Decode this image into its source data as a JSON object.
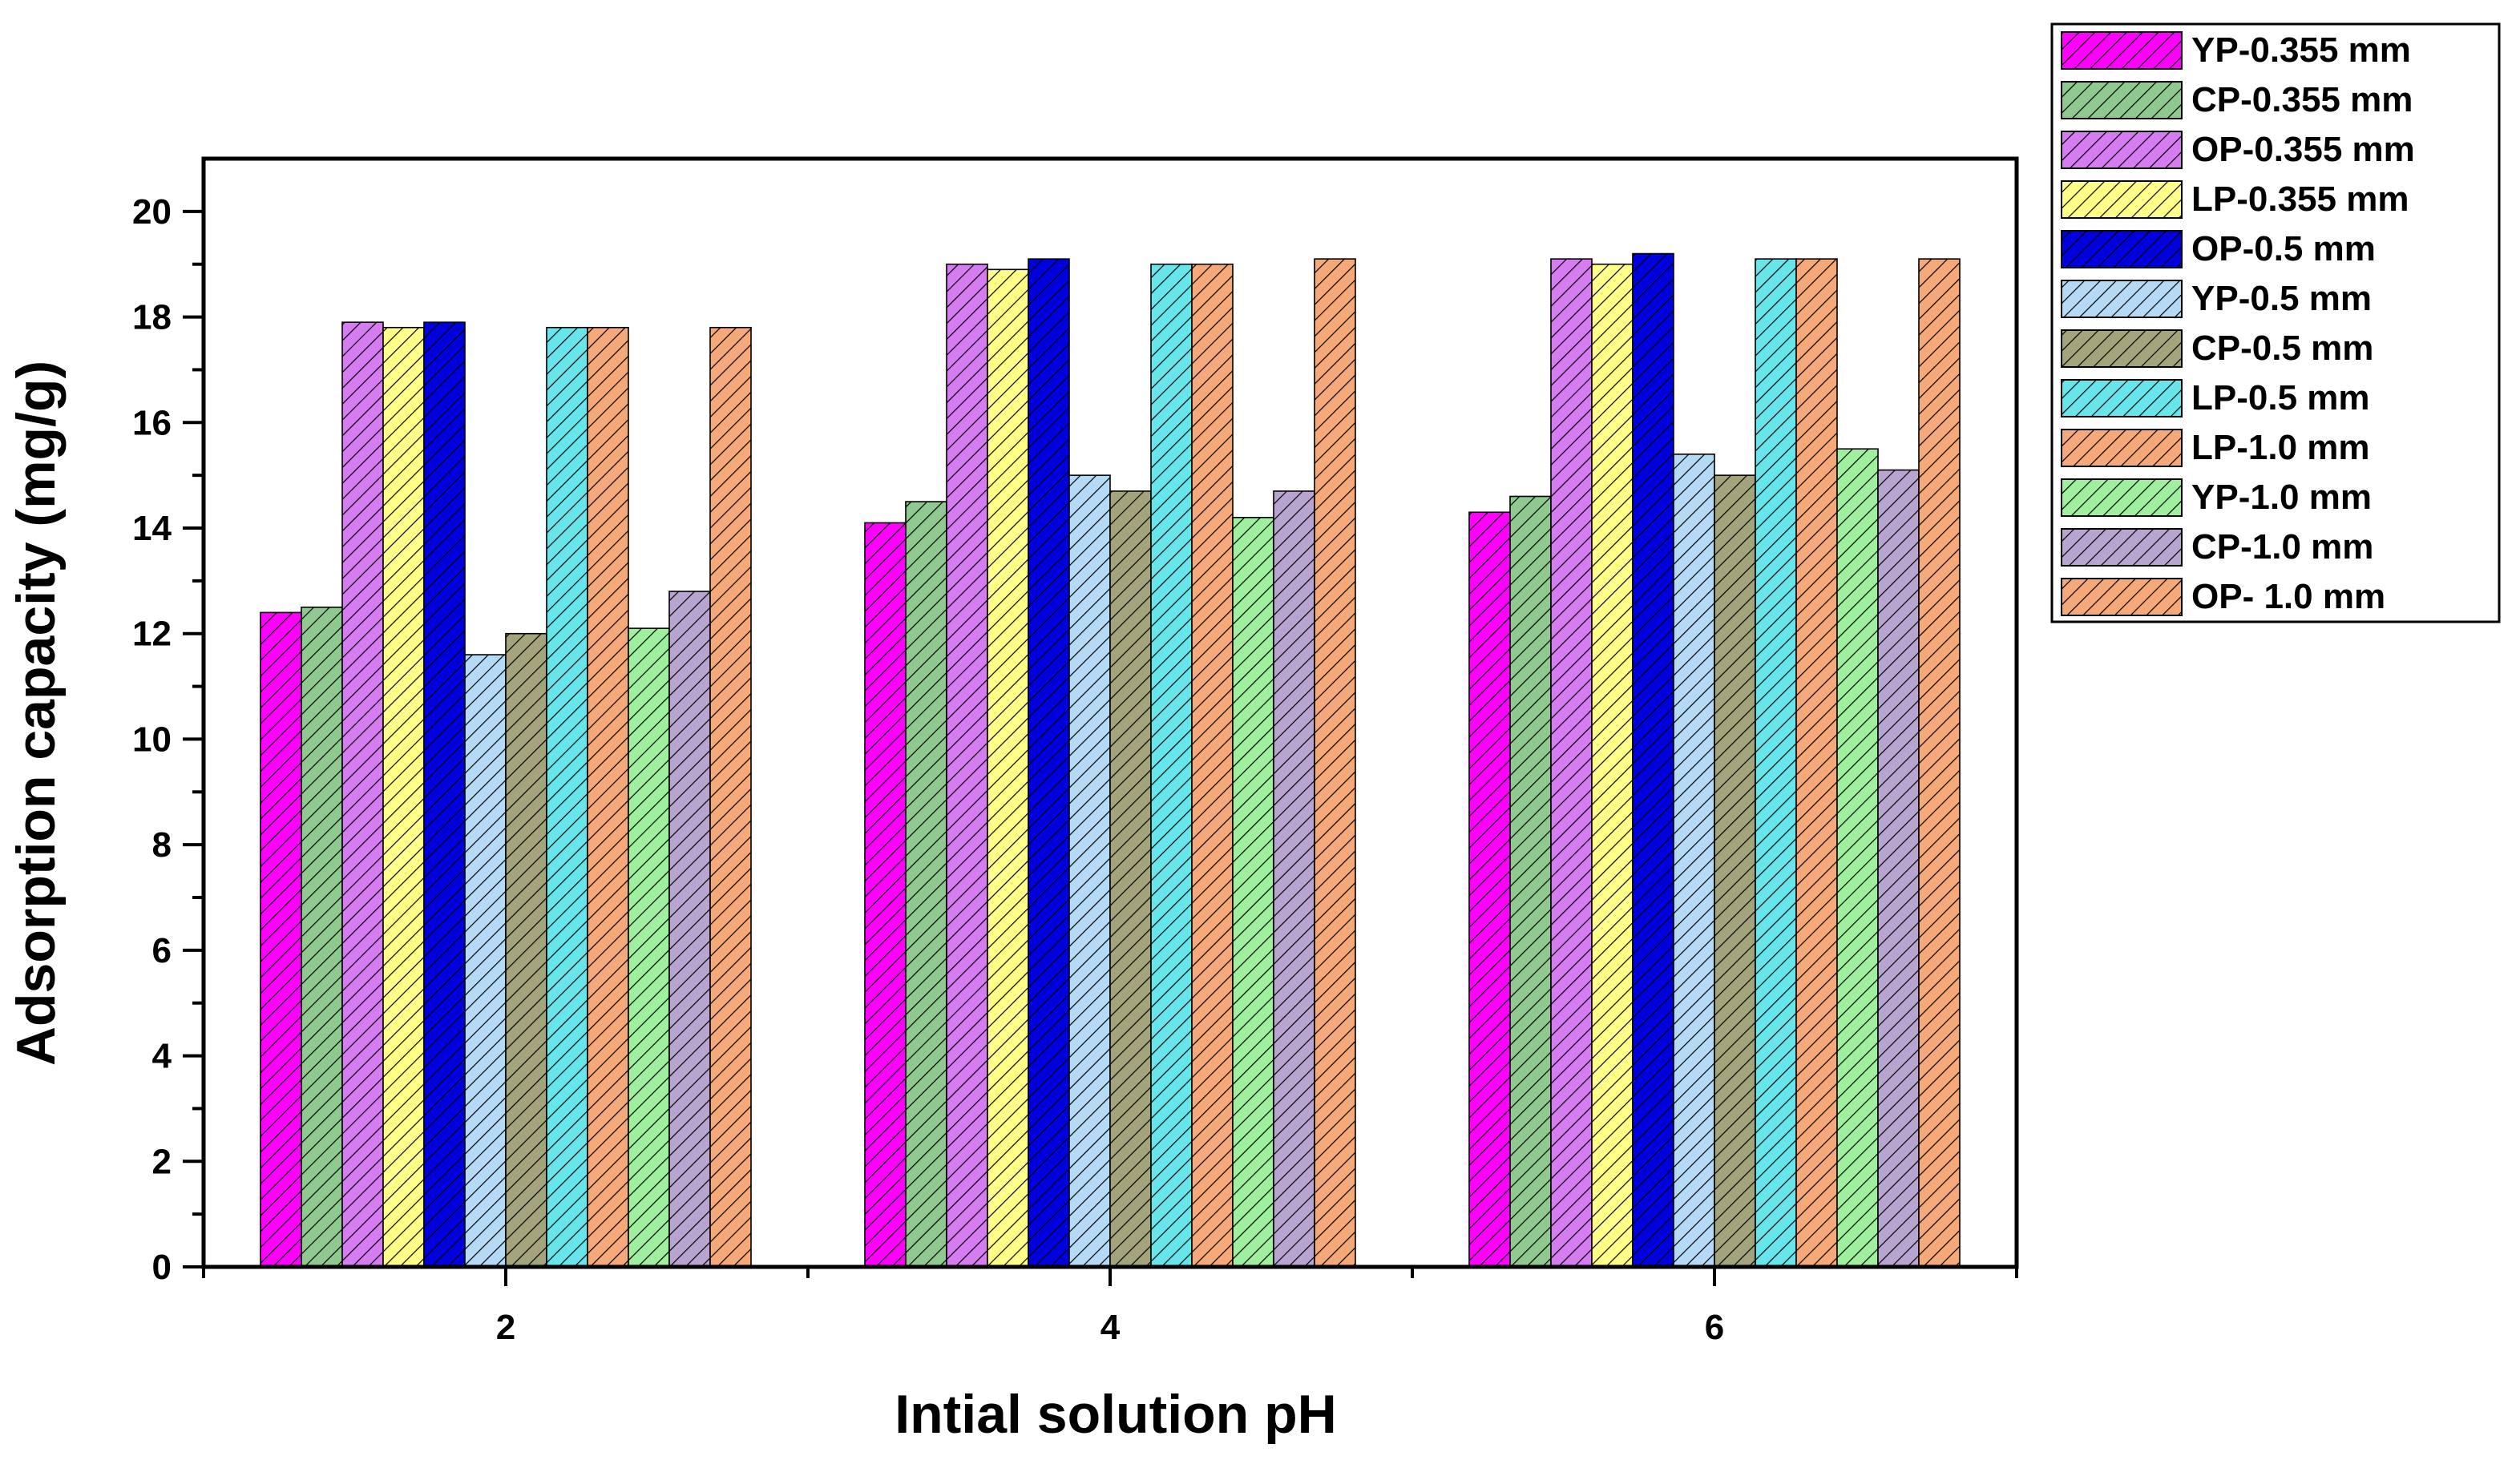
{
  "chart_data": {
    "type": "bar",
    "xlabel": "Intial solution pH",
    "ylabel": "Adsorption capacity (mg/g)",
    "categories": [
      "2",
      "4",
      "6"
    ],
    "ylim": [
      0,
      21
    ],
    "yticks": [
      0,
      2,
      4,
      6,
      8,
      10,
      12,
      14,
      16,
      18,
      20
    ],
    "legend_position": "outside-right-top",
    "hatch": "diagonal",
    "series": [
      {
        "name": "YP-0.355 mm",
        "color": "#ff00ff",
        "values": [
          12.4,
          14.1,
          14.3
        ]
      },
      {
        "name": "CP-0.355 mm",
        "color": "#8fc98f",
        "values": [
          12.5,
          14.5,
          14.6
        ]
      },
      {
        "name": "OP-0.355 mm",
        "color": "#d47cf0",
        "values": [
          17.9,
          19.0,
          19.1
        ]
      },
      {
        "name": "LP-0.355 mm",
        "color": "#ffff88",
        "values": [
          17.8,
          18.9,
          19.0
        ]
      },
      {
        "name": "OP-0.5 mm",
        "color": "#0000dd",
        "values": [
          17.9,
          19.1,
          19.2
        ]
      },
      {
        "name": "YP-0.5 mm",
        "color": "#b5daf5",
        "values": [
          11.6,
          15.0,
          15.4
        ]
      },
      {
        "name": "CP-0.5 mm",
        "color": "#a3a37c",
        "values": [
          12.0,
          14.7,
          15.0
        ]
      },
      {
        "name": "LP-0.5 mm",
        "color": "#66e6ea",
        "values": [
          17.8,
          19.0,
          19.1
        ]
      },
      {
        "name": "LP-1.0 mm",
        "color": "#f5a878",
        "values": [
          17.8,
          19.0,
          19.1
        ]
      },
      {
        "name": "YP-1.0 mm",
        "color": "#9ef09e",
        "values": [
          12.1,
          14.2,
          15.5
        ]
      },
      {
        "name": "CP-1.0 mm",
        "color": "#b8a5cf",
        "values": [
          12.8,
          14.7,
          15.1
        ]
      },
      {
        "name": "OP- 1.0 mm",
        "color": "#f5a878",
        "values": [
          17.8,
          19.1,
          19.1
        ]
      }
    ]
  }
}
